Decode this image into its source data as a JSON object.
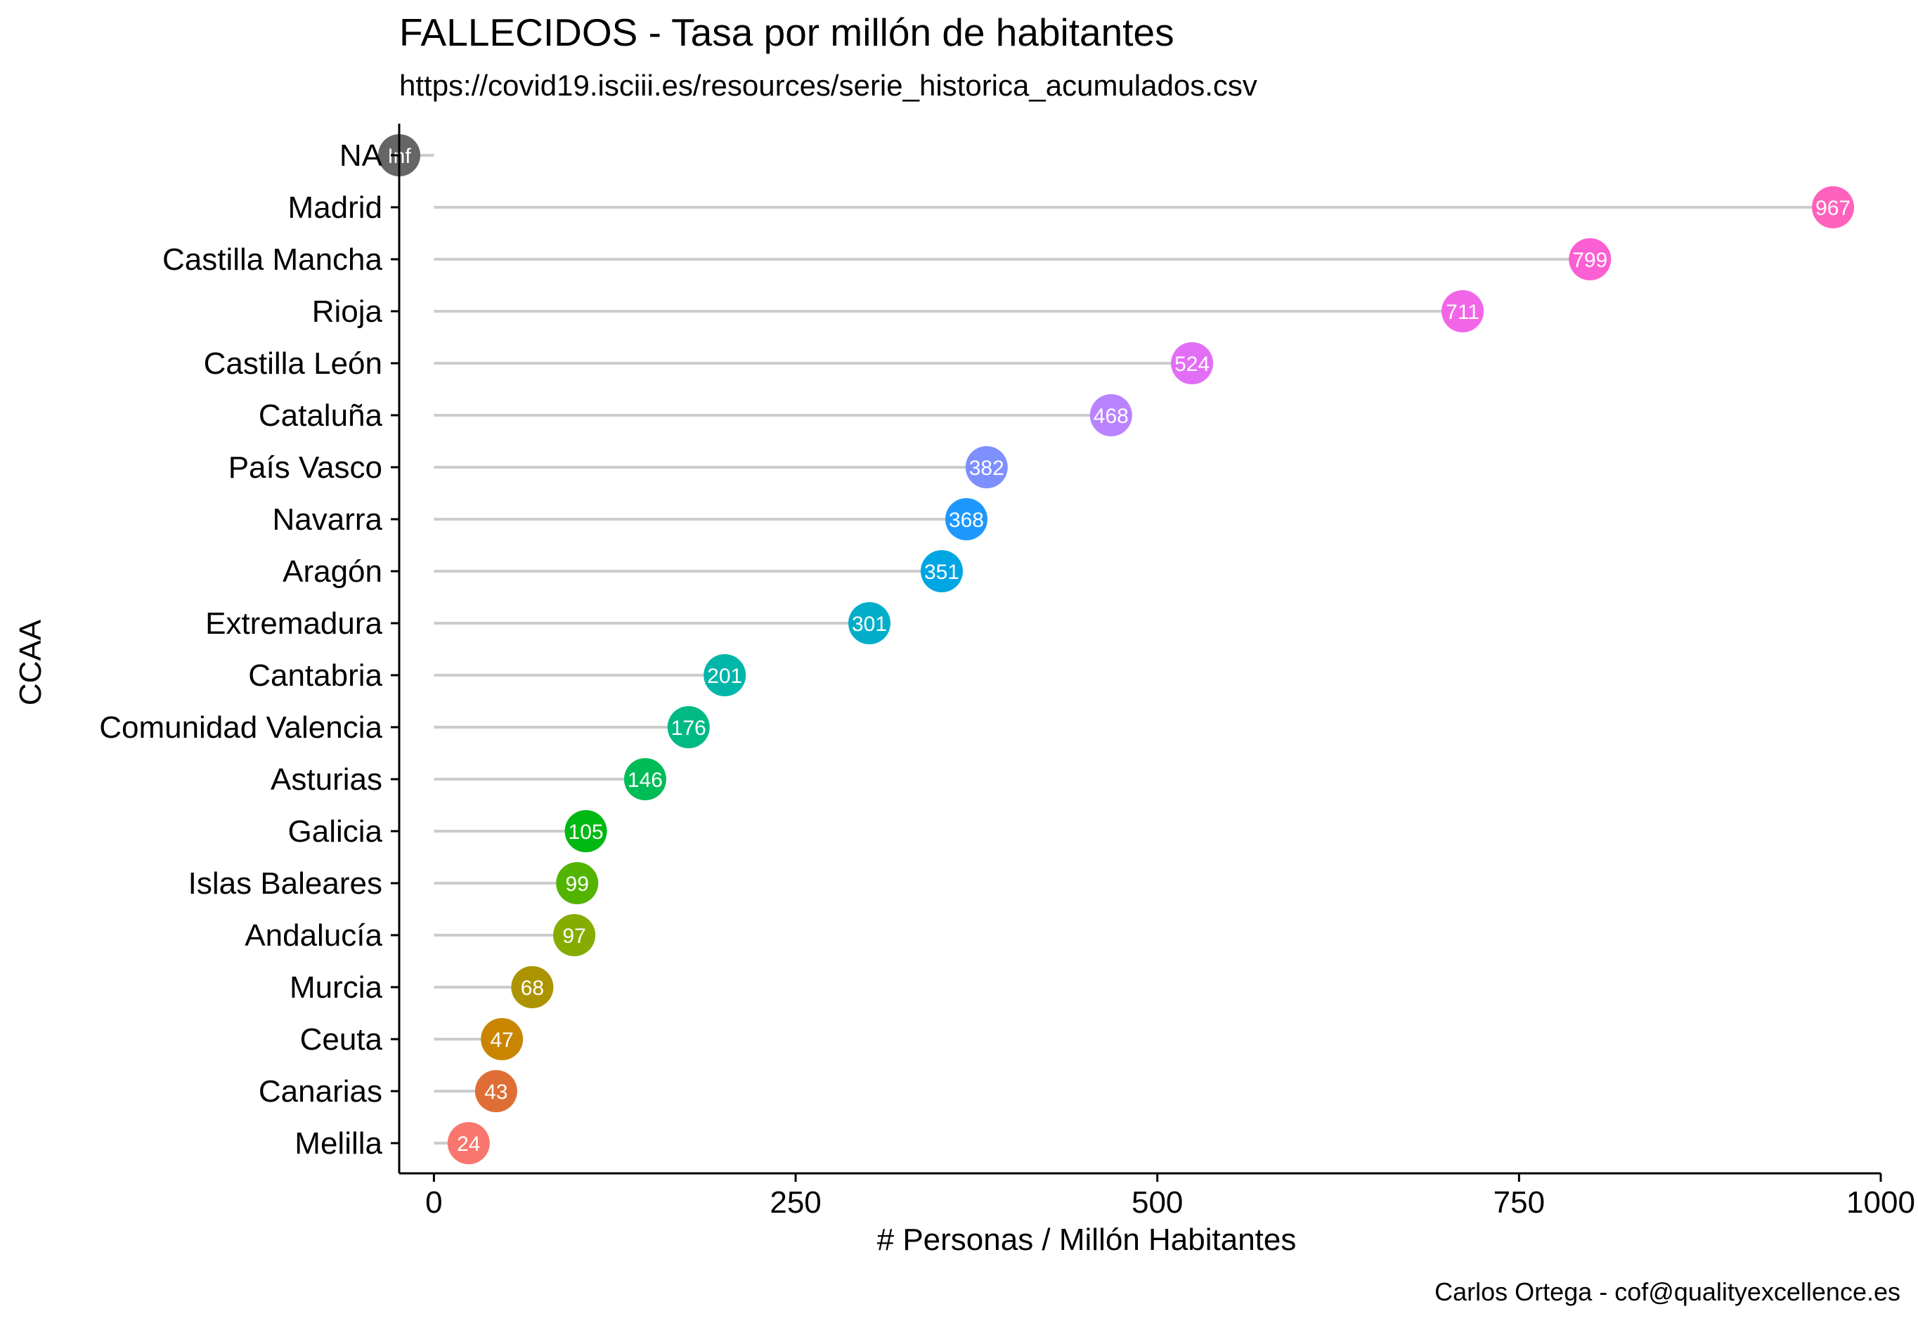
{
  "chart_data": {
    "type": "lollipop",
    "title": "FALLECIDOS - Tasa por millón de habitantes",
    "subtitle": "https://covid19.isciii.es/resources/serie_historica_acumulados.csv",
    "xlabel": "# Personas / Millón Habitantes",
    "ylabel": "CCAA",
    "caption": "Carlos Ortega - cof@qualityexcellence.es",
    "xlim": [
      -24,
      1000
    ],
    "xticks": [
      0,
      250,
      500,
      750,
      1000
    ],
    "xtick_labels": [
      "0",
      "250",
      "500",
      "750",
      "1000"
    ],
    "grid": false,
    "legend": "none",
    "stem_color": "#cccccc",
    "points": [
      {
        "category": "NA",
        "value": null,
        "label": "Inf",
        "color": "#666666"
      },
      {
        "category": "Madrid",
        "value": 967,
        "label": "967",
        "color": "#FF62BC"
      },
      {
        "category": "Castilla Mancha",
        "value": 799,
        "label": "799",
        "color": "#FC5FD3"
      },
      {
        "category": "Rioja",
        "value": 711,
        "label": "711",
        "color": "#F265E7"
      },
      {
        "category": "Castilla León",
        "value": 524,
        "label": "524",
        "color": "#E36EF6"
      },
      {
        "category": "Cataluña",
        "value": 468,
        "label": "468",
        "color": "#B983FF"
      },
      {
        "category": "País Vasco",
        "value": 382,
        "label": "382",
        "color": "#7E8FFF"
      },
      {
        "category": "Navarra",
        "value": 368,
        "label": "368",
        "color": "#1E98FF"
      },
      {
        "category": "Aragón",
        "value": 351,
        "label": "351",
        "color": "#00A5E3"
      },
      {
        "category": "Extremadura",
        "value": 301,
        "label": "301",
        "color": "#00AEC9"
      },
      {
        "category": "Cantabria",
        "value": 201,
        "label": "201",
        "color": "#00B6A9"
      },
      {
        "category": "Comunidad Valencia",
        "value": 176,
        "label": "176",
        "color": "#00BA84"
      },
      {
        "category": "Asturias",
        "value": 146,
        "label": "146",
        "color": "#00BC56"
      },
      {
        "category": "Galicia",
        "value": 105,
        "label": "105",
        "color": "#00B812"
      },
      {
        "category": "Islas Baleares",
        "value": 99,
        "label": "99",
        "color": "#53B400"
      },
      {
        "category": "Andalucía",
        "value": 97,
        "label": "97",
        "color": "#86AC00"
      },
      {
        "category": "Murcia",
        "value": 68,
        "label": "68",
        "color": "#AC9400"
      },
      {
        "category": "Ceuta",
        "value": 47,
        "label": "47",
        "color": "#C98500"
      },
      {
        "category": "Canarias",
        "value": 43,
        "label": "43",
        "color": "#DF6E36"
      },
      {
        "category": "Melilla",
        "value": 24,
        "label": "24",
        "color": "#F8766D"
      }
    ]
  }
}
